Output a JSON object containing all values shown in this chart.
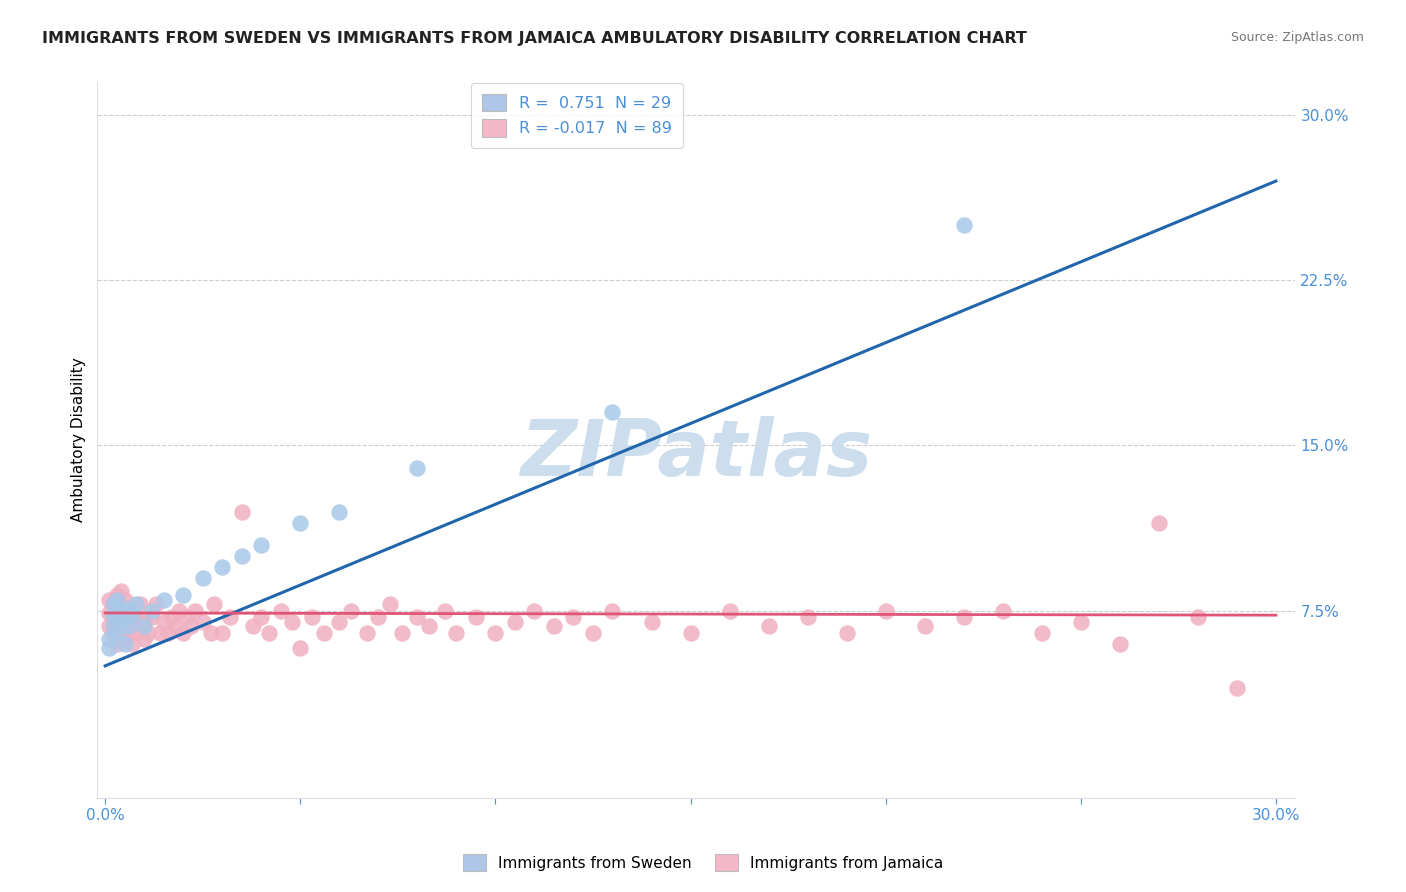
{
  "title": "IMMIGRANTS FROM SWEDEN VS IMMIGRANTS FROM JAMAICA AMBULATORY DISABILITY CORRELATION CHART",
  "source": "Source: ZipAtlas.com",
  "ylabel": "Ambulatory Disability",
  "xlim": [
    -0.002,
    0.305
  ],
  "ylim": [
    -0.01,
    0.315
  ],
  "xticks": [
    0.0,
    0.05,
    0.1,
    0.15,
    0.2,
    0.25,
    0.3
  ],
  "yticks": [
    0.075,
    0.15,
    0.225,
    0.3
  ],
  "ytick_labels": [
    "7.5%",
    "15.0%",
    "22.5%",
    "30.0%"
  ],
  "legend_blue_label": "R =  0.751  N = 29",
  "legend_pink_label": "R = -0.017  N = 89",
  "legend_blue_color": "#aec6e8",
  "legend_pink_color": "#f4b8c8",
  "blue_line_color": "#2166ac",
  "pink_line_color": "#e05575",
  "blue_scatter_color": "#a8c8e8",
  "pink_scatter_color": "#f0b0c0",
  "watermark": "ZIPatlas",
  "watermark_color": "#ccdded",
  "background_color": "#ffffff",
  "grid_color": "#cccccc",
  "title_color": "#222222",
  "tick_color": "#4a90d9",
  "title_fontsize": 11.5,
  "legend_bottom_sweden": "Immigrants from Sweden",
  "legend_bottom_jamaica": "Immigrants from Jamaica",
  "sweden_x": [
    0.001,
    0.001,
    0.002,
    0.002,
    0.002,
    0.003,
    0.003,
    0.003,
    0.004,
    0.004,
    0.005,
    0.005,
    0.006,
    0.006,
    0.007,
    0.008,
    0.01,
    0.012,
    0.015,
    0.02,
    0.025,
    0.03,
    0.035,
    0.04,
    0.05,
    0.06,
    0.08,
    0.13,
    0.22
  ],
  "sweden_y": [
    0.062,
    0.058,
    0.068,
    0.073,
    0.078,
    0.065,
    0.072,
    0.08,
    0.07,
    0.075,
    0.06,
    0.072,
    0.068,
    0.076,
    0.073,
    0.078,
    0.068,
    0.075,
    0.08,
    0.082,
    0.09,
    0.095,
    0.1,
    0.105,
    0.115,
    0.12,
    0.14,
    0.165,
    0.25
  ],
  "jamaica_x": [
    0.001,
    0.001,
    0.001,
    0.002,
    0.002,
    0.002,
    0.003,
    0.003,
    0.003,
    0.003,
    0.004,
    0.004,
    0.004,
    0.004,
    0.005,
    0.005,
    0.005,
    0.005,
    0.006,
    0.006,
    0.007,
    0.007,
    0.007,
    0.008,
    0.008,
    0.009,
    0.01,
    0.01,
    0.011,
    0.012,
    0.013,
    0.014,
    0.015,
    0.016,
    0.017,
    0.018,
    0.019,
    0.02,
    0.021,
    0.022,
    0.023,
    0.025,
    0.027,
    0.028,
    0.03,
    0.032,
    0.035,
    0.038,
    0.04,
    0.042,
    0.045,
    0.048,
    0.05,
    0.053,
    0.056,
    0.06,
    0.063,
    0.067,
    0.07,
    0.073,
    0.076,
    0.08,
    0.083,
    0.087,
    0.09,
    0.095,
    0.1,
    0.105,
    0.11,
    0.115,
    0.12,
    0.125,
    0.13,
    0.14,
    0.15,
    0.16,
    0.17,
    0.18,
    0.19,
    0.2,
    0.21,
    0.22,
    0.23,
    0.24,
    0.25,
    0.26,
    0.27,
    0.28,
    0.29
  ],
  "jamaica_y": [
    0.068,
    0.074,
    0.08,
    0.065,
    0.072,
    0.078,
    0.06,
    0.068,
    0.075,
    0.082,
    0.065,
    0.07,
    0.077,
    0.084,
    0.062,
    0.068,
    0.074,
    0.08,
    0.065,
    0.072,
    0.06,
    0.068,
    0.075,
    0.065,
    0.072,
    0.078,
    0.062,
    0.07,
    0.065,
    0.072,
    0.078,
    0.065,
    0.07,
    0.065,
    0.072,
    0.068,
    0.075,
    0.065,
    0.072,
    0.068,
    0.075,
    0.07,
    0.065,
    0.078,
    0.065,
    0.072,
    0.12,
    0.068,
    0.072,
    0.065,
    0.075,
    0.07,
    0.058,
    0.072,
    0.065,
    0.07,
    0.075,
    0.065,
    0.072,
    0.078,
    0.065,
    0.072,
    0.068,
    0.075,
    0.065,
    0.072,
    0.065,
    0.07,
    0.075,
    0.068,
    0.072,
    0.065,
    0.075,
    0.07,
    0.065,
    0.075,
    0.068,
    0.072,
    0.065,
    0.075,
    0.068,
    0.072,
    0.075,
    0.065,
    0.07,
    0.06,
    0.115,
    0.072,
    0.04
  ],
  "blue_line_x": [
    0.0,
    0.3
  ],
  "blue_line_y": [
    0.05,
    0.27
  ],
  "pink_line_x": [
    0.0,
    0.3
  ],
  "pink_line_y": [
    0.074,
    0.073
  ]
}
